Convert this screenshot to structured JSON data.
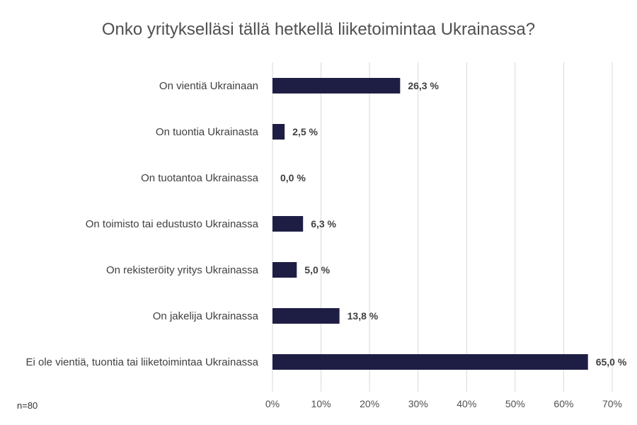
{
  "chart_data": {
    "type": "bar",
    "orientation": "horizontal",
    "title": "Onko yritykselläsi tällä hetkellä liiketoimintaa Ukrainassa?",
    "categories": [
      "On vientiä Ukrainaan",
      "On tuontia Ukrainasta",
      "On tuotantoa Ukrainassa",
      "On toimisto tai edustusto Ukrainassa",
      "On rekisteröity yritys Ukrainassa",
      "On jakelija Ukrainassa",
      "Ei ole vientiä, tuontia tai liiketoimintaa Ukrainassa"
    ],
    "values": [
      26.3,
      2.5,
      0.0,
      6.3,
      5.0,
      13.8,
      65.0
    ],
    "value_labels": [
      "26,3 %",
      "2,5 %",
      "0,0 %",
      "6,3 %",
      "5,0 %",
      "13,8 %",
      "65,0 %"
    ],
    "xlim": [
      0,
      70
    ],
    "x_ticks": [
      "0%",
      "10%",
      "20%",
      "30%",
      "40%",
      "50%",
      "60%",
      "70%"
    ],
    "grid": true,
    "bar_color": "#1e1e45",
    "grid_color": "#d9d9d9"
  },
  "note": "n=80"
}
